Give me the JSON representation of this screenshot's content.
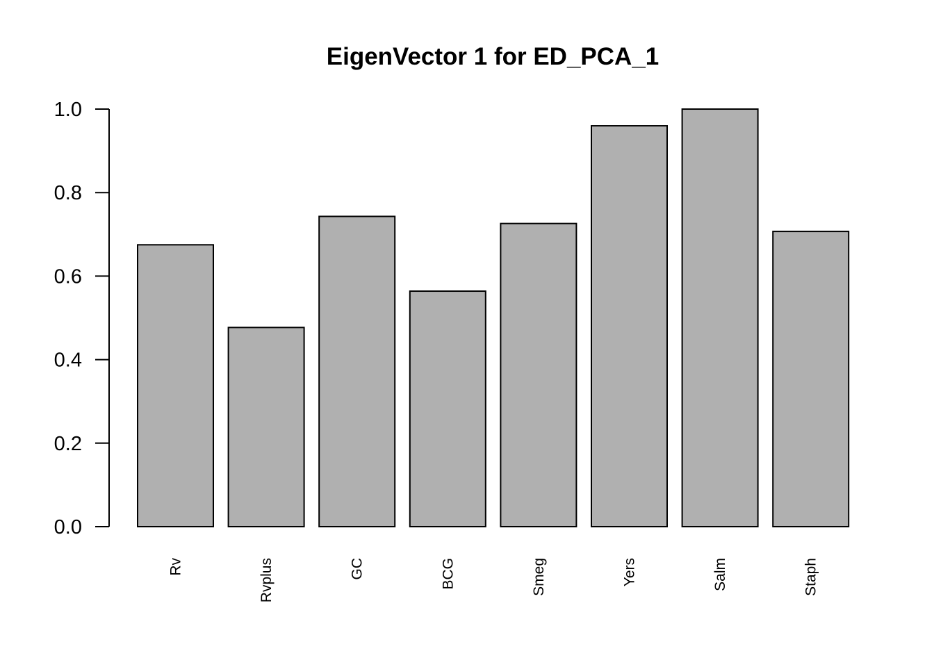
{
  "chart_data": {
    "type": "bar",
    "title": "EigenVector 1 for ED_PCA_1",
    "xlabel": "",
    "ylabel": "",
    "categories": [
      "Rv",
      "Rvplus",
      "GC",
      "BCG",
      "Smeg",
      "Yers",
      "Salm",
      "Staph"
    ],
    "values": [
      0.675,
      0.477,
      0.743,
      0.564,
      0.726,
      0.96,
      1.0,
      0.707
    ],
    "ylim": [
      0,
      1
    ],
    "yticks": [
      0.0,
      0.2,
      0.4,
      0.6,
      0.8,
      1.0
    ],
    "ytick_labels": [
      "0.0",
      "0.2",
      "0.4",
      "0.6",
      "0.8",
      "1.0"
    ],
    "x_tick_label_orientation": "vertical",
    "grid": false,
    "legend": "none",
    "colors": {
      "bar_fill": "#b0b0b0",
      "bar_stroke": "#000000",
      "text": "#000000",
      "background": "#ffffff"
    }
  }
}
